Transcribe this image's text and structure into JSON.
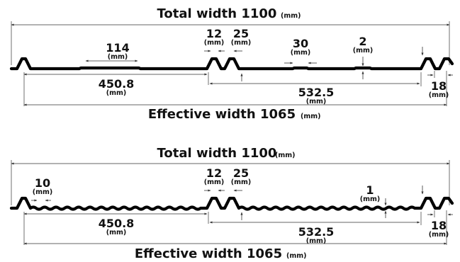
{
  "unit": "(mm)",
  "panels": [
    {
      "name": "flat-pan-profile",
      "total_width_label": "Total width 1100",
      "effective_width_label": "Effective width 1065",
      "dim_114": "114",
      "dim_12": "12",
      "dim_25": "25",
      "dim_30": "30",
      "dim_2": "2",
      "dim_450": "450.8",
      "dim_532": "532.5",
      "dim_18": "18"
    },
    {
      "name": "corrugated-pan-profile",
      "total_width_label": "Total width 1100",
      "effective_width_label": "Effective width 1065",
      "dim_10": "10",
      "dim_12": "12",
      "dim_25": "25",
      "dim_1": "1",
      "dim_450": "450.8",
      "dim_532": "532.5",
      "dim_18": "18"
    }
  ]
}
